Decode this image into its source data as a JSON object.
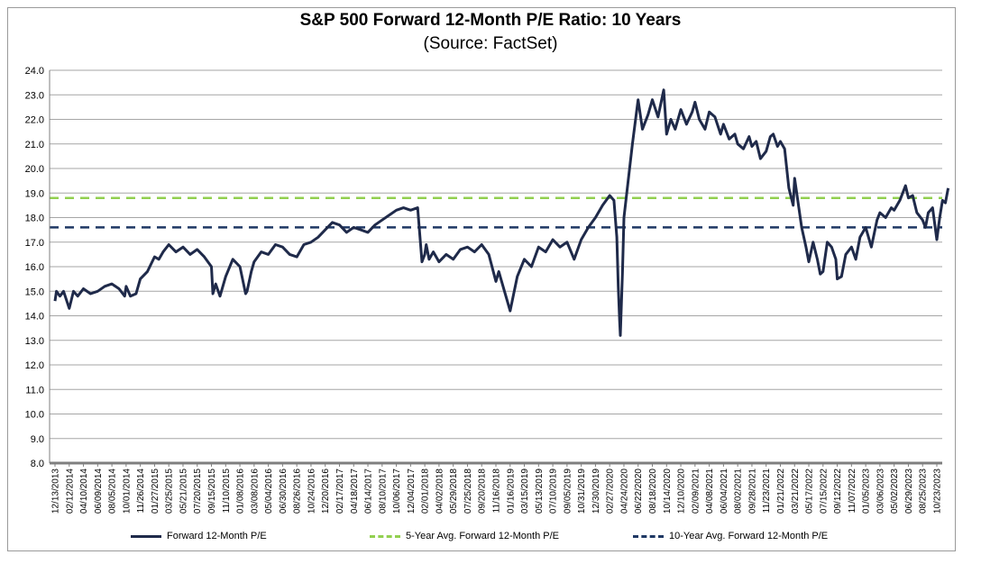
{
  "chart_data": {
    "type": "line",
    "title": "S&P 500 Forward 12-Month P/E Ratio: 10 Years",
    "subtitle": "(Source: FactSet)",
    "ylim": [
      8.0,
      24.0
    ],
    "yticks": [
      "24.0",
      "23.0",
      "22.0",
      "21.0",
      "20.0",
      "19.0",
      "18.0",
      "17.0",
      "16.0",
      "15.0",
      "14.0",
      "13.0",
      "12.0",
      "11.0",
      "10.0",
      "9.0",
      "8.0"
    ],
    "xticks": [
      "12/13/2013",
      "02/12/2014",
      "04/10/2014",
      "06/09/2014",
      "08/05/2014",
      "10/01/2014",
      "11/26/2014",
      "01/27/2015",
      "03/25/2015",
      "05/21/2015",
      "07/20/2015",
      "09/15/2015",
      "11/10/2015",
      "01/08/2016",
      "03/08/2016",
      "05/04/2016",
      "06/30/2016",
      "08/26/2016",
      "10/24/2016",
      "12/20/2016",
      "02/17/2017",
      "04/18/2017",
      "06/14/2017",
      "08/10/2017",
      "10/06/2017",
      "12/04/2017",
      "02/01/2018",
      "04/02/2018",
      "05/29/2018",
      "07/25/2018",
      "09/20/2018",
      "11/16/2018",
      "01/16/2019",
      "03/15/2019",
      "05/13/2019",
      "07/10/2019",
      "09/05/2019",
      "10/31/2019",
      "12/30/2019",
      "02/27/2020",
      "04/24/2020",
      "06/22/2020",
      "08/18/2020",
      "10/14/2020",
      "12/10/2020",
      "02/09/2021",
      "04/08/2021",
      "06/04/2021",
      "08/02/2021",
      "09/28/2021",
      "11/23/2021",
      "01/21/2022",
      "03/21/2022",
      "05/17/2022",
      "07/15/2022",
      "09/12/2022",
      "11/07/2022",
      "01/05/2023",
      "03/06/2023",
      "05/02/2023",
      "06/29/2023",
      "08/25/2023",
      "10/23/2023"
    ],
    "reference_lines": [
      {
        "name": "5-Year Avg. Forward 12-Month P/E",
        "value": 18.8,
        "color": "#92d050",
        "style": "dashed"
      },
      {
        "name": "10-Year Avg. Forward 12-Month P/E",
        "value": 17.6,
        "color": "#1f3864",
        "style": "dashed"
      }
    ],
    "series": [
      {
        "name": "Forward 12-Month P/E",
        "color": "#1f2a4a",
        "x": [
          0,
          0.1,
          0.35,
          0.6,
          1,
          1.3,
          1.6,
          2,
          2.5,
          3,
          3.5,
          4,
          4.5,
          4.9,
          5,
          5.3,
          5.7,
          6,
          6.5,
          7,
          7.3,
          7.6,
          8,
          8.5,
          9,
          9.5,
          10,
          10.5,
          11,
          11.1,
          11.3,
          11.6,
          12,
          12.5,
          13,
          13.4,
          13.5,
          13.8,
          14,
          14.5,
          15,
          15.5,
          16,
          16.5,
          17,
          17.5,
          18,
          18.5,
          19,
          19.5,
          20,
          20.5,
          21,
          21.5,
          22,
          22.5,
          23,
          23.5,
          24,
          24.5,
          25,
          25.5,
          25.8,
          26,
          26.1,
          26.3,
          26.6,
          27,
          27.5,
          28,
          28.5,
          29,
          29.5,
          30,
          30.5,
          31,
          31.2,
          31.6,
          32,
          32.5,
          33,
          33.5,
          34,
          34.5,
          35,
          35.5,
          36,
          36.5,
          37,
          37.5,
          38,
          38.5,
          39,
          39.3,
          39.5,
          39.6,
          39.7,
          39.75,
          39.9,
          40,
          40.3,
          40.6,
          41,
          41.3,
          41.7,
          42,
          42.4,
          42.8,
          43,
          43.3,
          43.6,
          44,
          44.4,
          44.8,
          45,
          45.3,
          45.7,
          46,
          46.4,
          46.8,
          47,
          47.4,
          47.8,
          48,
          48.4,
          48.8,
          49,
          49.3,
          49.6,
          50,
          50.3,
          50.5,
          50.8,
          51,
          51.3,
          51.6,
          51.9,
          52,
          52.2,
          52.5,
          52.8,
          53,
          53.3,
          53.6,
          53.8,
          54,
          54.3,
          54.6,
          54.9,
          55,
          55.3,
          55.6,
          56,
          56.3,
          56.6,
          57,
          57.4,
          57.8,
          58,
          58.4,
          58.8,
          59,
          59.4,
          59.8,
          60,
          60.3,
          60.6,
          61,
          61.2,
          61.4,
          61.7,
          62,
          62.2,
          62.4,
          62.6,
          62.8
        ],
        "values": [
          14.6,
          15.0,
          14.8,
          15.0,
          14.3,
          15.0,
          14.8,
          15.1,
          14.9,
          15.0,
          15.2,
          15.3,
          15.1,
          14.8,
          15.2,
          14.8,
          14.9,
          15.5,
          15.8,
          16.4,
          16.3,
          16.6,
          16.9,
          16.6,
          16.8,
          16.5,
          16.7,
          16.4,
          16.0,
          14.9,
          15.3,
          14.8,
          15.6,
          16.3,
          16.0,
          14.9,
          15.0,
          15.8,
          16.2,
          16.6,
          16.5,
          16.9,
          16.8,
          16.5,
          16.4,
          16.9,
          17.0,
          17.2,
          17.5,
          17.8,
          17.7,
          17.4,
          17.6,
          17.5,
          17.4,
          17.7,
          17.9,
          18.1,
          18.3,
          18.4,
          18.3,
          18.4,
          16.2,
          16.5,
          16.9,
          16.3,
          16.6,
          16.2,
          16.5,
          16.3,
          16.7,
          16.8,
          16.6,
          16.9,
          16.5,
          15.4,
          15.8,
          15.0,
          14.2,
          15.6,
          16.3,
          16.0,
          16.8,
          16.6,
          17.1,
          16.8,
          17.0,
          16.3,
          17.1,
          17.6,
          18.0,
          18.5,
          18.9,
          18.7,
          17.2,
          15.2,
          13.8,
          13.2,
          15.8,
          18.0,
          19.5,
          21.0,
          22.8,
          21.6,
          22.2,
          22.8,
          22.1,
          23.2,
          21.4,
          22.0,
          21.6,
          22.4,
          21.8,
          22.3,
          22.7,
          22.0,
          21.6,
          22.3,
          22.1,
          21.4,
          21.8,
          21.2,
          21.4,
          21.0,
          20.8,
          21.3,
          20.9,
          21.1,
          20.4,
          20.7,
          21.3,
          21.4,
          20.9,
          21.1,
          20.8,
          19.2,
          18.5,
          19.6,
          18.8,
          17.6,
          16.8,
          16.2,
          17.0,
          16.3,
          15.7,
          15.8,
          17.0,
          16.8,
          16.3,
          15.5,
          15.6,
          16.5,
          16.8,
          16.3,
          17.2,
          17.6,
          16.8,
          17.9,
          18.2,
          18.0,
          18.4,
          18.3,
          18.7,
          19.3,
          18.8,
          18.9,
          18.2,
          17.9,
          17.6,
          18.2,
          18.4,
          17.1,
          18.0,
          18.7,
          18.6,
          19.2
        ]
      }
    ],
    "legend": [
      {
        "label": "Forward 12-Month P/E",
        "color": "#1f2a4a",
        "style": "solid"
      },
      {
        "label": "5-Year Avg. Forward 12-Month P/E",
        "color": "#92d050",
        "style": "dashed"
      },
      {
        "label": "10-Year Avg. Forward 12-Month P/E",
        "color": "#1f3864",
        "style": "dashed"
      }
    ],
    "legend_position": "bottom",
    "grid": true
  }
}
